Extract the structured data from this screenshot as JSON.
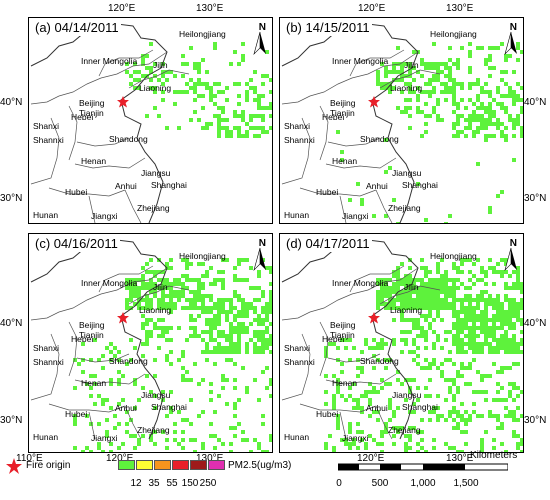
{
  "panels": [
    {
      "title": "(a) 04/14/2011",
      "density": 0.1
    },
    {
      "title": "(b) 14/15/2011",
      "density": 0.18
    },
    {
      "title": "(c) 04/16/2011",
      "density": 0.32
    },
    {
      "title": "(d) 04/17/2011",
      "density": 0.42
    }
  ],
  "provinces": [
    "Inner Mongolia",
    "Heilongjiang",
    "Jilin",
    "Liaoning",
    "Beijing",
    "Tianjin",
    "Hebei",
    "Shanxi",
    "Shannxi",
    "Shandong",
    "Henan",
    "Jiangsu",
    "Anhui",
    "Hubei",
    "Shanghai",
    "Hunan",
    "Jiangxi",
    "Zhejiang"
  ],
  "axes": {
    "top_ticks": [
      "120°E",
      "130°E"
    ],
    "bottom_ticks": [
      "110°E",
      "120°E",
      "130°E"
    ],
    "lat_ticks": [
      "40°N",
      "30°N"
    ]
  },
  "north_label": "N",
  "legend": {
    "fire_label": "Fire origin",
    "unit_label": "PM2.5(ug/m3)",
    "levels": [
      "12",
      "35",
      "55",
      "150",
      "250"
    ],
    "colors": [
      "#5ef23c",
      "#ffff33",
      "#f7941d",
      "#e8202a",
      "#9e1a1a",
      "#e02fb0"
    ],
    "fire_color": "#e8202a"
  },
  "scalebar": {
    "unit": "Kilometers",
    "labels": [
      "0",
      "500",
      "1,000",
      "1,500"
    ]
  }
}
